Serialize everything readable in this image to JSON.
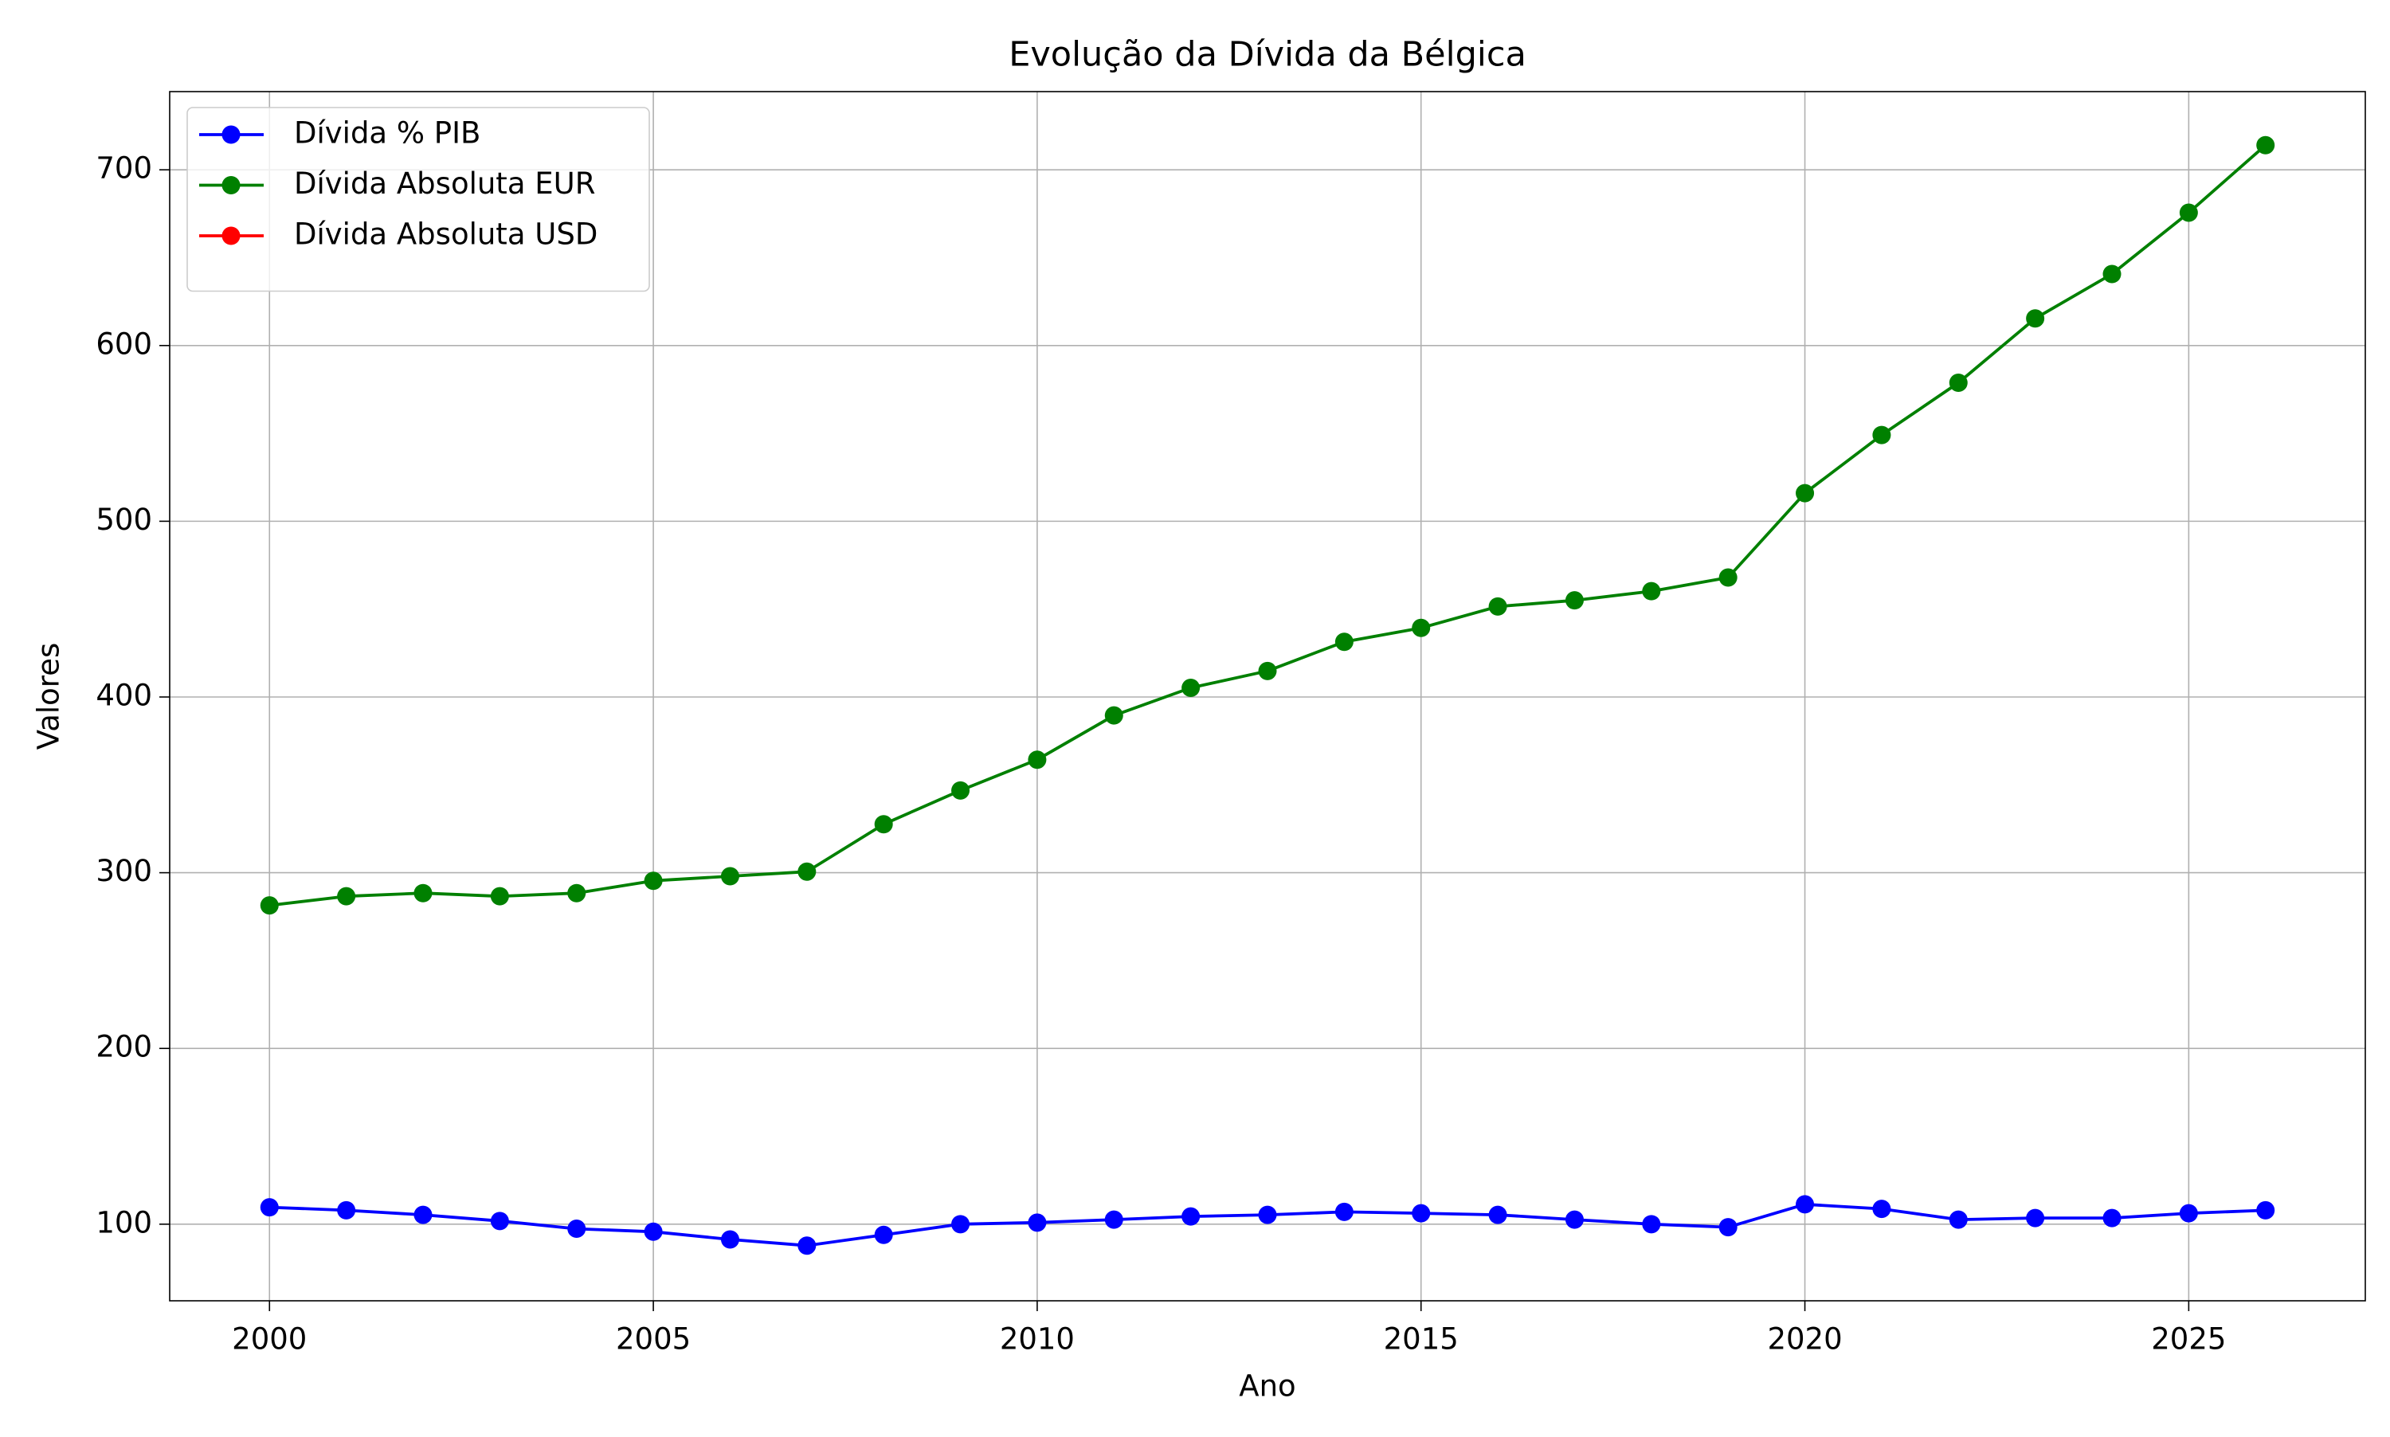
{
  "chart_data": {
    "type": "line",
    "title": "Evolução da Dívida da Bélgica",
    "xlabel": "Ano",
    "ylabel": "Valores",
    "x": [
      2000,
      2001,
      2002,
      2003,
      2004,
      2005,
      2006,
      2007,
      2008,
      2009,
      2010,
      2011,
      2012,
      2013,
      2014,
      2015,
      2016,
      2017,
      2018,
      2019,
      2020,
      2021,
      2022,
      2023,
      2024,
      2025,
      2026
    ],
    "series": [
      {
        "name": "Dívida % PIB",
        "color": "#0000ff",
        "values": [
          109.6,
          107.9,
          105.3,
          101.8,
          97.4,
          95.7,
          91.3,
          87.8,
          93.9,
          100,
          100.9,
          102.6,
          104.4,
          105.3,
          107,
          106.2,
          105.3,
          102.6,
          100,
          98.3,
          111.3,
          108.7,
          102.6,
          103.5,
          103.5,
          106.2,
          107.9
        ]
      },
      {
        "name": "Dívida Absoluta EUR",
        "color": "#008000",
        "values": [
          281.4,
          286.6,
          288.4,
          286.6,
          288.4,
          295.4,
          298,
          300.6,
          327.6,
          346.8,
          364.3,
          389.5,
          405.2,
          414.8,
          431.4,
          439.3,
          451.5,
          455,
          460.2,
          468,
          516,
          549.1,
          578.8,
          615.4,
          640.7,
          675.6,
          714
        ]
      },
      {
        "name": "Dívida Absoluta USD",
        "color": "#ff0000",
        "values": [
          null,
          null,
          null,
          null,
          null,
          null,
          null,
          null,
          null,
          null,
          null,
          null,
          null,
          null,
          null,
          null,
          null,
          null,
          null,
          null,
          null,
          null,
          null,
          null,
          null,
          null,
          null
        ]
      }
    ],
    "xlim": [
      1998.7,
      2027.3
    ],
    "xticks": [
      2000,
      2005,
      2010,
      2015,
      2020,
      2025
    ],
    "ylim": [
      56.4,
      744.5
    ],
    "yticks": [
      100,
      200,
      300,
      400,
      500,
      600,
      700
    ],
    "grid": true,
    "legend": "upper left"
  }
}
